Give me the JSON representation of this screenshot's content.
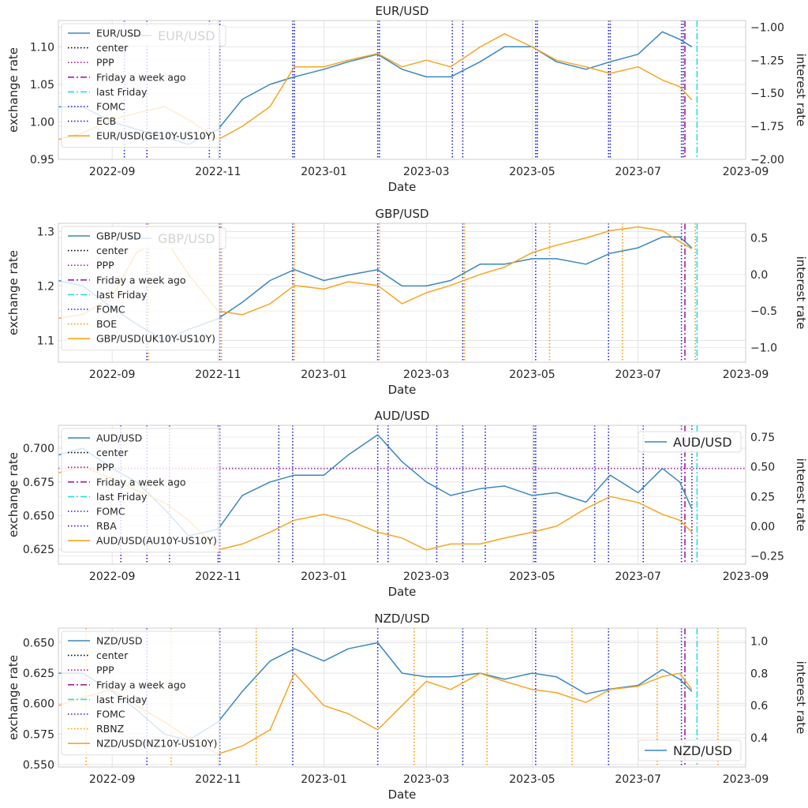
{
  "chart_data": [
    {
      "type": "line",
      "title": "EUR/USD",
      "xlabel": "Date",
      "ylabel": "exchange rate",
      "y2label": "interest rate",
      "xlim": [
        "2022-08-01",
        "2023-09-01"
      ],
      "xticks": [
        "2022-09",
        "2022-11",
        "2023-01",
        "2023-03",
        "2023-05",
        "2023-07",
        "2023-09"
      ],
      "ylim": [
        0.95,
        1.135
      ],
      "yticks": [
        0.95,
        1.0,
        1.05,
        1.1
      ],
      "ytick_labels": [
        "0.95",
        "1.00",
        "1.05",
        "1.10"
      ],
      "y2lim": [
        -2.0,
        -0.95
      ],
      "y2ticks": [
        -2.0,
        -1.75,
        -1.5,
        -1.25,
        -1.0
      ],
      "y2tick_labels": [
        "−2.00",
        "−1.75",
        "−1.50",
        "−1.25",
        "−1.00"
      ],
      "grid": true,
      "legend_position": "top-left",
      "legend": [
        "EUR/USD",
        "center",
        "PPP",
        "Friday a week ago",
        "last Friday",
        "FOMC",
        "ECB",
        "EUR/USD(GE10Y-US10Y)"
      ],
      "legend2": "EUR/USD",
      "legend2_position": "top-left",
      "series": [
        {
          "name": "EUR/USD",
          "axis": "left",
          "color": "#3a87bf",
          "x": [
            "2022-08-01",
            "2022-08-15",
            "2022-09-01",
            "2022-09-15",
            "2022-10-01",
            "2022-10-15",
            "2022-11-01",
            "2022-11-15",
            "2022-12-01",
            "2022-12-15",
            "2023-01-01",
            "2023-01-15",
            "2023-02-01",
            "2023-02-15",
            "2023-03-01",
            "2023-03-15",
            "2023-04-01",
            "2023-04-15",
            "2023-05-01",
            "2023-05-15",
            "2023-06-01",
            "2023-06-15",
            "2023-07-01",
            "2023-07-15",
            "2023-07-25",
            "2023-08-01"
          ],
          "values": [
            1.02,
            1.02,
            1.0,
            0.99,
            0.98,
            0.97,
            0.99,
            1.03,
            1.05,
            1.06,
            1.07,
            1.08,
            1.09,
            1.07,
            1.06,
            1.06,
            1.08,
            1.1,
            1.1,
            1.08,
            1.07,
            1.08,
            1.09,
            1.12,
            1.11,
            1.1
          ]
        },
        {
          "name": "EUR/USD(GE10Y-US10Y)",
          "axis": "right",
          "color": "#f5a623",
          "x": [
            "2022-08-01",
            "2022-08-15",
            "2022-09-01",
            "2022-09-15",
            "2022-10-01",
            "2022-10-15",
            "2022-11-01",
            "2022-11-15",
            "2022-12-01",
            "2022-12-15",
            "2023-01-01",
            "2023-01-15",
            "2023-02-01",
            "2023-02-15",
            "2023-03-01",
            "2023-03-15",
            "2023-04-01",
            "2023-04-15",
            "2023-05-01",
            "2023-05-15",
            "2023-06-01",
            "2023-06-15",
            "2023-07-01",
            "2023-07-15",
            "2023-07-25",
            "2023-08-01"
          ],
          "values": [
            -1.85,
            -1.8,
            -1.7,
            -1.65,
            -1.6,
            -1.7,
            -1.85,
            -1.75,
            -1.6,
            -1.3,
            -1.3,
            -1.25,
            -1.2,
            -1.3,
            -1.25,
            -1.3,
            -1.15,
            -1.05,
            -1.15,
            -1.25,
            -1.3,
            -1.35,
            -1.3,
            -1.4,
            -1.45,
            -1.55
          ]
        }
      ],
      "events": [
        {
          "name": "FOMC",
          "style": "dotted",
          "color": "#1f1fe0",
          "dates": [
            "2022-09-21",
            "2022-11-02",
            "2022-12-14",
            "2023-02-01",
            "2023-03-22",
            "2023-05-03",
            "2023-06-14",
            "2023-07-26"
          ]
        },
        {
          "name": "ECB",
          "style": "dotted",
          "color": "#1f1fe0",
          "dates": [
            "2022-09-08",
            "2022-10-27",
            "2022-12-15",
            "2023-02-02",
            "2023-03-16",
            "2023-05-04",
            "2023-06-15",
            "2023-07-27"
          ]
        },
        {
          "name": "Friday a week ago",
          "style": "dashdot",
          "color": "#a020a0",
          "dates": [
            "2023-07-28"
          ]
        },
        {
          "name": "last Friday",
          "style": "dashdot",
          "color": "#22e0e0",
          "dates": [
            "2023-08-04"
          ]
        }
      ]
    },
    {
      "type": "line",
      "title": "GBP/USD",
      "xlabel": "Date",
      "ylabel": "exchange rate",
      "y2label": "interest rate",
      "xlim": [
        "2022-08-01",
        "2023-09-01"
      ],
      "xticks": [
        "2022-09",
        "2022-11",
        "2023-01",
        "2023-03",
        "2023-05",
        "2023-07",
        "2023-09"
      ],
      "ylim": [
        1.06,
        1.315
      ],
      "yticks": [
        1.1,
        1.2,
        1.3
      ],
      "ytick_labels": [
        "1.1",
        "1.2",
        "1.3"
      ],
      "y2lim": [
        -1.2,
        0.7
      ],
      "y2ticks": [
        -1.0,
        -0.5,
        0.0,
        0.5
      ],
      "y2tick_labels": [
        "−1.0",
        "−0.5",
        "0.0",
        "0.5"
      ],
      "grid": true,
      "legend_position": "top-left",
      "legend": [
        "GBP/USD",
        "center",
        "PPP",
        "Friday a week ago",
        "last Friday",
        "FOMC",
        "BOE",
        "GBP/USD(UK10Y-US10Y)"
      ],
      "legend2": "GBP/USD",
      "legend2_position": "top-left",
      "series": [
        {
          "name": "GBP/USD",
          "axis": "left",
          "color": "#3a87bf",
          "x": [
            "2022-08-01",
            "2022-08-15",
            "2022-09-01",
            "2022-09-15",
            "2022-10-01",
            "2022-10-15",
            "2022-11-01",
            "2022-11-15",
            "2022-12-01",
            "2022-12-15",
            "2023-01-01",
            "2023-01-15",
            "2023-02-01",
            "2023-02-15",
            "2023-03-01",
            "2023-03-15",
            "2023-04-01",
            "2023-04-15",
            "2023-05-01",
            "2023-05-15",
            "2023-06-01",
            "2023-06-15",
            "2023-07-01",
            "2023-07-15",
            "2023-07-25",
            "2023-08-01"
          ],
          "values": [
            1.21,
            1.2,
            1.16,
            1.13,
            1.1,
            1.12,
            1.14,
            1.17,
            1.21,
            1.23,
            1.21,
            1.22,
            1.23,
            1.2,
            1.2,
            1.21,
            1.24,
            1.24,
            1.25,
            1.25,
            1.24,
            1.26,
            1.27,
            1.29,
            1.29,
            1.27
          ]
        },
        {
          "name": "GBP/USD(UK10Y-US10Y)",
          "axis": "right",
          "color": "#f5a623",
          "x": [
            "2022-08-01",
            "2022-08-15",
            "2022-09-01",
            "2022-09-15",
            "2022-10-01",
            "2022-10-15",
            "2022-11-01",
            "2022-11-15",
            "2022-12-01",
            "2022-12-15",
            "2023-01-01",
            "2023-01-15",
            "2023-02-01",
            "2023-02-15",
            "2023-03-01",
            "2023-03-15",
            "2023-04-01",
            "2023-04-15",
            "2023-05-01",
            "2023-05-15",
            "2023-06-01",
            "2023-06-15",
            "2023-07-01",
            "2023-07-15",
            "2023-07-25",
            "2023-08-01"
          ],
          "values": [
            -0.6,
            -0.55,
            -0.3,
            0.3,
            0.5,
            0.0,
            -0.5,
            -0.55,
            -0.4,
            -0.15,
            -0.2,
            -0.1,
            -0.15,
            -0.4,
            -0.25,
            -0.15,
            0.0,
            0.1,
            0.3,
            0.4,
            0.5,
            0.6,
            0.65,
            0.6,
            0.45,
            0.35
          ]
        }
      ],
      "events": [
        {
          "name": "FOMC",
          "style": "dotted",
          "color": "#1f1fe0",
          "dates": [
            "2022-09-21",
            "2022-11-02",
            "2022-12-14",
            "2023-02-01",
            "2023-03-22",
            "2023-05-03",
            "2023-06-14",
            "2023-07-26"
          ]
        },
        {
          "name": "BOE",
          "style": "dotted",
          "color": "#ff9900",
          "dates": [
            "2022-09-22",
            "2022-11-03",
            "2022-12-15",
            "2023-02-02",
            "2023-03-23",
            "2023-05-11",
            "2023-06-22",
            "2023-08-03"
          ]
        },
        {
          "name": "Friday a week ago",
          "style": "dashdot",
          "color": "#a020a0",
          "dates": [
            "2023-07-28"
          ]
        },
        {
          "name": "last Friday",
          "style": "dashdot",
          "color": "#22e0e0",
          "dates": [
            "2023-08-04"
          ]
        }
      ]
    },
    {
      "type": "line",
      "title": "AUD/USD",
      "xlabel": "Date",
      "ylabel": "exchange rate",
      "y2label": "interest rate",
      "xlim": [
        "2022-08-01",
        "2023-09-01"
      ],
      "xticks": [
        "2022-09",
        "2022-11",
        "2023-01",
        "2023-03",
        "2023-05",
        "2023-07",
        "2023-09"
      ],
      "ylim": [
        0.614,
        0.717
      ],
      "yticks": [
        0.625,
        0.65,
        0.675,
        0.7
      ],
      "ytick_labels": [
        "0.625",
        "0.650",
        "0.675",
        "0.700"
      ],
      "y2lim": [
        -0.32,
        0.85
      ],
      "y2ticks": [
        -0.25,
        0.0,
        0.25,
        0.5,
        0.75
      ],
      "y2tick_labels": [
        "−0.25",
        "0.00",
        "0.25",
        "0.50",
        "0.75"
      ],
      "grid": true,
      "legend_position": "top-left",
      "legend": [
        "AUD/USD",
        "center",
        "PPP",
        "Friday a week ago",
        "last Friday",
        "FOMC",
        "RBA",
        "AUD/USD(AU10Y-US10Y)"
      ],
      "legend2": "AUD/USD",
      "legend2_position": "top-right",
      "ppp_level": 0.685,
      "series": [
        {
          "name": "AUD/USD",
          "axis": "left",
          "color": "#3a87bf",
          "x": [
            "2022-08-01",
            "2022-08-15",
            "2022-09-01",
            "2022-09-15",
            "2022-10-01",
            "2022-10-15",
            "2022-11-01",
            "2022-11-15",
            "2022-12-01",
            "2022-12-15",
            "2023-01-01",
            "2023-01-15",
            "2023-02-01",
            "2023-02-15",
            "2023-03-01",
            "2023-03-15",
            "2023-04-01",
            "2023-04-15",
            "2023-05-01",
            "2023-05-15",
            "2023-06-01",
            "2023-06-15",
            "2023-07-01",
            "2023-07-15",
            "2023-07-25",
            "2023-08-01"
          ],
          "values": [
            0.695,
            0.7,
            0.685,
            0.675,
            0.655,
            0.635,
            0.64,
            0.665,
            0.675,
            0.68,
            0.68,
            0.695,
            0.71,
            0.69,
            0.675,
            0.665,
            0.67,
            0.672,
            0.665,
            0.667,
            0.66,
            0.68,
            0.667,
            0.685,
            0.675,
            0.655
          ]
        },
        {
          "name": "AUD/USD(AU10Y-US10Y)",
          "axis": "right",
          "color": "#f5a623",
          "x": [
            "2022-08-01",
            "2022-08-15",
            "2022-09-01",
            "2022-09-15",
            "2022-10-01",
            "2022-10-15",
            "2022-11-01",
            "2022-11-15",
            "2022-12-01",
            "2022-12-15",
            "2023-01-01",
            "2023-01-15",
            "2023-02-01",
            "2023-02-15",
            "2023-03-01",
            "2023-03-15",
            "2023-04-01",
            "2023-04-15",
            "2023-05-01",
            "2023-05-15",
            "2023-06-01",
            "2023-06-15",
            "2023-07-01",
            "2023-07-15",
            "2023-07-25",
            "2023-08-01"
          ],
          "values": [
            0.45,
            0.5,
            0.4,
            0.3,
            0.2,
            0.05,
            -0.2,
            -0.15,
            -0.05,
            0.05,
            0.1,
            0.05,
            -0.05,
            -0.1,
            -0.2,
            -0.15,
            -0.15,
            -0.1,
            -0.05,
            0.0,
            0.15,
            0.25,
            0.2,
            0.1,
            0.05,
            -0.05
          ]
        }
      ],
      "events": [
        {
          "name": "FOMC",
          "style": "dotted",
          "color": "#1f1fe0",
          "dates": [
            "2022-09-21",
            "2022-11-02",
            "2022-12-14",
            "2023-02-01",
            "2023-03-22",
            "2023-05-03",
            "2023-06-14",
            "2023-07-26"
          ]
        },
        {
          "name": "RBA",
          "style": "dotted",
          "color": "#1f1fe0",
          "dates": [
            "2022-09-06",
            "2022-10-04",
            "2022-11-01",
            "2022-12-06",
            "2023-02-07",
            "2023-03-07",
            "2023-04-04",
            "2023-05-02",
            "2023-06-06",
            "2023-07-04",
            "2023-08-01"
          ]
        },
        {
          "name": "Friday a week ago",
          "style": "dashdot",
          "color": "#a020a0",
          "dates": [
            "2023-07-28"
          ]
        },
        {
          "name": "last Friday",
          "style": "dashdot",
          "color": "#22e0e0",
          "dates": [
            "2023-08-04"
          ]
        }
      ]
    },
    {
      "type": "line",
      "title": "NZD/USD",
      "xlabel": "Date",
      "ylabel": "exchange rate",
      "y2label": "interest rate",
      "xlim": [
        "2022-08-01",
        "2023-09-01"
      ],
      "xticks": [
        "2022-09",
        "2022-11",
        "2023-01",
        "2023-03",
        "2023-05",
        "2023-07",
        "2023-09"
      ],
      "ylim": [
        0.548,
        0.662
      ],
      "yticks": [
        0.55,
        0.575,
        0.6,
        0.625,
        0.65
      ],
      "ytick_labels": [
        "0.550",
        "0.575",
        "0.600",
        "0.625",
        "0.650"
      ],
      "y2lim": [
        0.22,
        1.08
      ],
      "y2ticks": [
        0.4,
        0.6,
        0.8,
        1.0
      ],
      "y2tick_labels": [
        "0.4",
        "0.6",
        "0.8",
        "1.0"
      ],
      "grid": true,
      "legend_position": "top-left",
      "legend": [
        "NZD/USD",
        "center",
        "PPP",
        "Friday a week ago",
        "last Friday",
        "FOMC",
        "RBNZ",
        "NZD/USD(NZ10Y-US10Y)"
      ],
      "legend2": "NZD/USD",
      "legend2_position": "bottom-right",
      "series": [
        {
          "name": "NZD/USD",
          "axis": "left",
          "color": "#3a87bf",
          "x": [
            "2022-08-01",
            "2022-08-15",
            "2022-09-01",
            "2022-09-15",
            "2022-10-01",
            "2022-10-15",
            "2022-11-01",
            "2022-11-15",
            "2022-12-01",
            "2022-12-15",
            "2023-01-01",
            "2023-01-15",
            "2023-02-01",
            "2023-02-15",
            "2023-03-01",
            "2023-03-15",
            "2023-04-01",
            "2023-04-15",
            "2023-05-01",
            "2023-05-15",
            "2023-06-01",
            "2023-06-15",
            "2023-07-01",
            "2023-07-15",
            "2023-07-25",
            "2023-08-01"
          ],
          "values": [
            0.625,
            0.625,
            0.61,
            0.595,
            0.575,
            0.57,
            0.585,
            0.61,
            0.635,
            0.645,
            0.635,
            0.645,
            0.65,
            0.625,
            0.622,
            0.622,
            0.625,
            0.62,
            0.625,
            0.622,
            0.608,
            0.612,
            0.615,
            0.628,
            0.62,
            0.61
          ]
        },
        {
          "name": "NZD/USD(NZ10Y-US10Y)",
          "axis": "right",
          "color": "#f5a623",
          "x": [
            "2022-08-01",
            "2022-08-15",
            "2022-09-01",
            "2022-09-15",
            "2022-10-01",
            "2022-10-15",
            "2022-11-01",
            "2022-11-15",
            "2022-12-01",
            "2022-12-15",
            "2023-01-01",
            "2023-01-15",
            "2023-02-01",
            "2023-02-15",
            "2023-03-01",
            "2023-03-15",
            "2023-04-01",
            "2023-04-15",
            "2023-05-01",
            "2023-05-15",
            "2023-06-01",
            "2023-06-15",
            "2023-07-01",
            "2023-07-15",
            "2023-07-25",
            "2023-08-01"
          ],
          "values": [
            0.6,
            0.65,
            0.7,
            0.6,
            0.5,
            0.4,
            0.3,
            0.35,
            0.45,
            0.8,
            0.6,
            0.55,
            0.45,
            0.6,
            0.75,
            0.7,
            0.8,
            0.75,
            0.7,
            0.68,
            0.62,
            0.7,
            0.72,
            0.78,
            0.8,
            0.7
          ]
        }
      ],
      "events": [
        {
          "name": "FOMC",
          "style": "dotted",
          "color": "#1f1fe0",
          "dates": [
            "2022-09-21",
            "2022-11-02",
            "2022-12-14",
            "2023-02-01",
            "2023-03-22",
            "2023-05-03",
            "2023-06-14",
            "2023-07-26"
          ]
        },
        {
          "name": "RBNZ",
          "style": "dotted",
          "color": "#ff9900",
          "dates": [
            "2022-08-17",
            "2022-10-05",
            "2022-11-23",
            "2023-02-22",
            "2023-04-05",
            "2023-05-24",
            "2023-07-12",
            "2023-08-16"
          ]
        },
        {
          "name": "Friday a week ago",
          "style": "dashdot",
          "color": "#a020a0",
          "dates": [
            "2023-07-28"
          ]
        },
        {
          "name": "last Friday",
          "style": "dashdot",
          "color": "#22e0e0",
          "dates": [
            "2023-08-04"
          ]
        }
      ]
    }
  ]
}
